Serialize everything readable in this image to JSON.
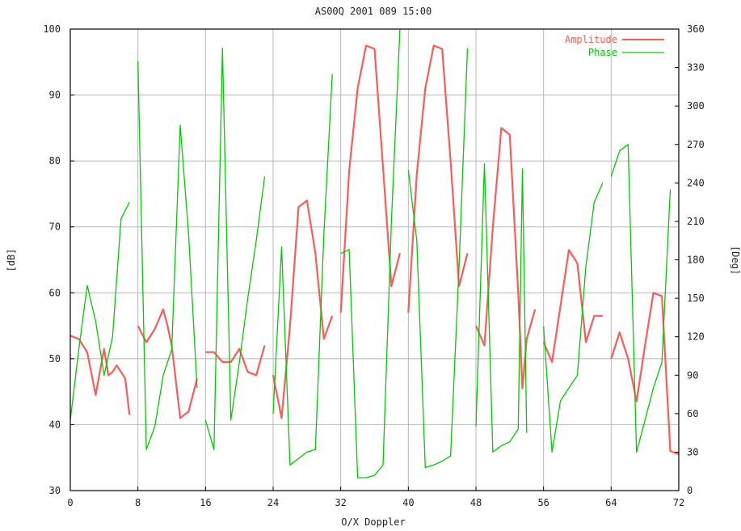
{
  "chart_data": {
    "type": "line",
    "title": "AS00Q 2001 089 15:00",
    "xlabel": "O/X Doppler",
    "ylabel_left": "[dB]",
    "ylabel_right": "[Deg]",
    "xlim": [
      0,
      72
    ],
    "ylim_left": [
      30,
      100
    ],
    "ylim_right": [
      0,
      360
    ],
    "x_ticks": [
      "0",
      "8",
      "16",
      "24",
      "32",
      "40",
      "48",
      "56",
      "64",
      "72"
    ],
    "y_ticks_left": [
      "30",
      "40",
      "50",
      "60",
      "70",
      "80",
      "90",
      "100"
    ],
    "y_ticks_right": [
      "0",
      "30",
      "60",
      "90",
      "120",
      "150",
      "180",
      "210",
      "240",
      "270",
      "300",
      "330",
      "360"
    ],
    "grid": true,
    "legend_position": "top-right",
    "colors": {
      "amplitude": "#ff5a5a",
      "phase": "#00cc00",
      "grid": "#b8b8b8",
      "axes": "#000000"
    },
    "series": [
      {
        "name": "Amplitude",
        "axis": "left",
        "segments": [
          [
            [
              0,
              53.5
            ],
            [
              1,
              53
            ],
            [
              2,
              51
            ],
            [
              3,
              44.5
            ],
            [
              4,
              51.5
            ],
            [
              4.5,
              47.5
            ],
            [
              5,
              48
            ],
            [
              5.5,
              49
            ],
            [
              6,
              48
            ],
            [
              6.5,
              47
            ],
            [
              7,
              41.5
            ]
          ],
          [
            [
              8,
              55
            ],
            [
              9,
              52.5
            ],
            [
              10,
              54.5
            ],
            [
              11,
              57.5
            ],
            [
              11.5,
              55
            ],
            [
              12,
              52
            ],
            [
              13,
              41
            ],
            [
              14,
              42
            ],
            [
              15,
              47
            ]
          ],
          [
            [
              16,
              51
            ],
            [
              17,
              51
            ],
            [
              18,
              49.5
            ],
            [
              19,
              49.5
            ],
            [
              20,
              51.5
            ],
            [
              21,
              48
            ],
            [
              22,
              47.5
            ],
            [
              23,
              52
            ]
          ],
          [
            [
              24,
              47.5
            ],
            [
              25,
              41
            ],
            [
              26,
              55
            ],
            [
              27,
              73
            ],
            [
              28,
              74
            ],
            [
              29,
              66
            ],
            [
              30,
              53
            ],
            [
              31,
              56.5
            ]
          ],
          [
            [
              32,
              57
            ],
            [
              33,
              78.5
            ],
            [
              34,
              91
            ],
            [
              35,
              97.5
            ],
            [
              36,
              97
            ],
            [
              37,
              79
            ],
            [
              38,
              61
            ],
            [
              39,
              66
            ]
          ],
          [
            [
              40,
              57
            ],
            [
              41,
              78
            ],
            [
              42,
              91
            ],
            [
              43,
              97.5
            ],
            [
              44,
              97
            ],
            [
              45,
              80
            ],
            [
              46,
              61
            ],
            [
              47,
              66
            ]
          ],
          [
            [
              48,
              55
            ],
            [
              49,
              52
            ],
            [
              50,
              70
            ],
            [
              51,
              85
            ],
            [
              52,
              84
            ],
            [
              53,
              60
            ],
            [
              53.5,
              45.5
            ],
            [
              54,
              53
            ],
            [
              55,
              57.5
            ]
          ],
          [
            [
              56,
              52.5
            ],
            [
              57,
              49.5
            ],
            [
              58,
              58
            ],
            [
              59,
              66.5
            ],
            [
              60,
              64.5
            ],
            [
              61,
              52.5
            ],
            [
              62,
              56.5
            ],
            [
              63,
              56.5
            ]
          ],
          [
            [
              64,
              50
            ],
            [
              65,
              54
            ],
            [
              66,
              50
            ],
            [
              67,
              43.5
            ],
            [
              68,
              52
            ],
            [
              69,
              60
            ],
            [
              70,
              59.5
            ],
            [
              71,
              36
            ],
            [
              72,
              35.5
            ]
          ]
        ]
      },
      {
        "name": "Phase",
        "axis": "right",
        "segments": [
          [
            [
              0,
              55
            ],
            [
              1,
              110
            ],
            [
              2,
              160
            ],
            [
              3,
              132
            ],
            [
              4,
              90
            ],
            [
              5,
              120
            ],
            [
              6,
              212
            ],
            [
              7,
              225
            ]
          ],
          [
            [
              8,
              335
            ],
            [
              9,
              32
            ],
            [
              10,
              50
            ],
            [
              11,
              90
            ],
            [
              12,
              110
            ],
            [
              13,
              285
            ],
            [
              14,
              200
            ],
            [
              15,
              80
            ]
          ],
          [
            [
              16,
              55
            ],
            [
              17,
              32
            ],
            [
              18,
              345
            ],
            [
              19,
              55
            ],
            [
              20,
              100
            ],
            [
              21,
              150
            ],
            [
              22,
              195
            ],
            [
              23,
              245
            ]
          ],
          [
            [
              24,
              60
            ],
            [
              25,
              190
            ],
            [
              26,
              20
            ],
            [
              27,
              25
            ],
            [
              28,
              30
            ],
            [
              29,
              32
            ],
            [
              30,
              200
            ],
            [
              31,
              325
            ]
          ],
          [
            [
              32,
              185
            ],
            [
              33,
              188
            ],
            [
              34,
              10
            ],
            [
              35,
              10
            ],
            [
              36,
              12
            ],
            [
              37,
              20
            ],
            [
              38,
              210
            ],
            [
              39,
              360
            ]
          ],
          [
            [
              40,
              250
            ],
            [
              41,
              195
            ],
            [
              42,
              18
            ],
            [
              43,
              20
            ],
            [
              44,
              23
            ],
            [
              45,
              27
            ],
            [
              46,
              175
            ],
            [
              47,
              345
            ]
          ],
          [
            [
              48,
              50
            ],
            [
              49,
              255
            ],
            [
              50,
              30
            ],
            [
              51,
              35
            ],
            [
              52,
              38
            ],
            [
              53,
              48
            ],
            [
              53.5,
              251
            ],
            [
              54,
              45
            ]
          ],
          [
            [
              56,
              128
            ],
            [
              57,
              30
            ],
            [
              58,
              70
            ],
            [
              59,
              80
            ],
            [
              60,
              90
            ],
            [
              61,
              175
            ],
            [
              62,
              225
            ],
            [
              63,
              240
            ]
          ],
          [
            [
              64,
              245
            ],
            [
              65,
              265
            ],
            [
              66,
              270
            ],
            [
              67,
              30
            ],
            [
              68,
              55
            ],
            [
              69,
              80
            ],
            [
              70,
              100
            ],
            [
              71,
              235
            ]
          ]
        ]
      }
    ]
  }
}
